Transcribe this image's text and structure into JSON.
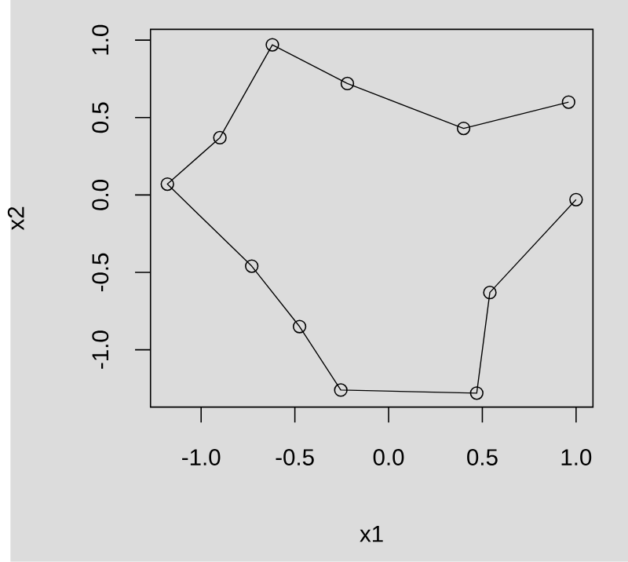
{
  "chart_data": {
    "type": "line",
    "xlabel": "x1",
    "ylabel": "x2",
    "x": [
      0.96,
      0.4,
      -0.22,
      -0.62,
      -0.9,
      -1.18,
      -0.73,
      -0.475,
      -0.255,
      0.47,
      0.54,
      1.0
    ],
    "values": [
      0.6,
      0.43,
      0.72,
      0.97,
      0.37,
      0.07,
      -0.46,
      -0.85,
      -1.26,
      -1.28,
      -0.63,
      -0.03
    ],
    "color": "#000000",
    "marker": "circle",
    "line_style": "solid",
    "xlim": [
      -1.27,
      1.09
    ],
    "ylim": [
      -1.37,
      1.07
    ],
    "xticks": [
      {
        "value": -1,
        "label": "-1.0"
      },
      {
        "value": -0.5,
        "label": "-0.5"
      },
      {
        "value": 0,
        "label": "0.0"
      },
      {
        "value": 0.5,
        "label": "0.5"
      },
      {
        "value": 1,
        "label": "1.0"
      }
    ],
    "yticks": [
      {
        "value": -1,
        "label": "-1.0"
      },
      {
        "value": -0.5,
        "label": "-0.5"
      },
      {
        "value": 0,
        "label": "0.0"
      },
      {
        "value": 0.5,
        "label": "0.5"
      },
      {
        "value": 1,
        "label": "1.0"
      }
    ]
  }
}
